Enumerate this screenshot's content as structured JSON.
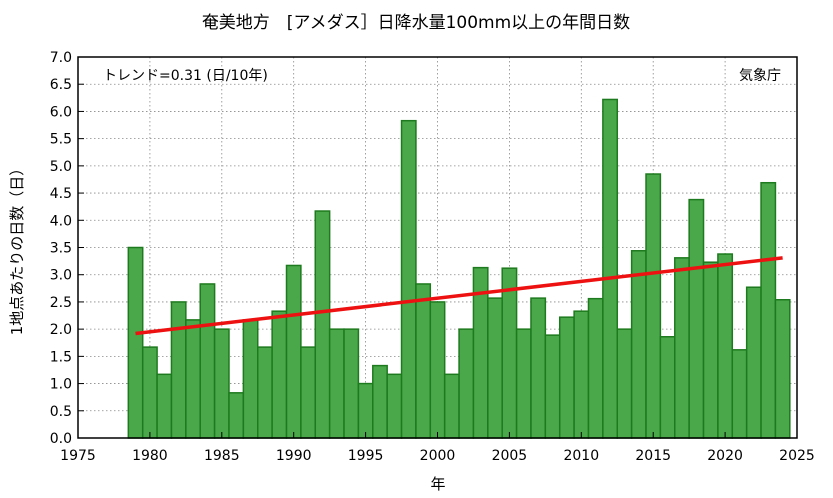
{
  "chart_data": {
    "type": "bar",
    "title": "奄美地方　[アメダス］日降水量100mm以上の年間日数",
    "xlabel": "年",
    "ylabel": "1地点あたりの日数（日）",
    "trend_label": "トレンド=0.31 (日/10年)",
    "source": "気象庁",
    "xlim": [
      1975,
      2025
    ],
    "ylim": [
      0,
      7.0
    ],
    "x_ticks": [
      "1975",
      "1980",
      "1985",
      "1990",
      "1995",
      "2000",
      "2005",
      "2010",
      "2015",
      "2020",
      "2025"
    ],
    "y_ticks": [
      "0.0",
      "0.5",
      "1.0",
      "1.5",
      "2.0",
      "2.5",
      "3.0",
      "3.5",
      "4.0",
      "4.5",
      "5.0",
      "5.5",
      "6.0",
      "6.5",
      "7.0"
    ],
    "grid": true,
    "years": [
      1979,
      1980,
      1981,
      1982,
      1983,
      1984,
      1985,
      1986,
      1987,
      1988,
      1989,
      1990,
      1991,
      1992,
      1993,
      1994,
      1995,
      1996,
      1997,
      1998,
      1999,
      2000,
      2001,
      2002,
      2003,
      2004,
      2005,
      2006,
      2007,
      2008,
      2009,
      2010,
      2011,
      2012,
      2013,
      2014,
      2015,
      2016,
      2017,
      2018,
      2019,
      2020,
      2021,
      2022,
      2023,
      2024
    ],
    "values": [
      3.5,
      1.67,
      1.17,
      2.5,
      2.17,
      2.83,
      2.0,
      0.83,
      2.17,
      1.67,
      2.33,
      3.17,
      1.67,
      4.17,
      2.0,
      2.0,
      1.0,
      1.33,
      1.17,
      5.83,
      2.83,
      2.5,
      1.17,
      2.0,
      3.13,
      2.57,
      3.12,
      2.0,
      2.57,
      1.89,
      2.22,
      2.33,
      2.56,
      6.22,
      2.0,
      3.44,
      4.85,
      1.86,
      3.31,
      4.38,
      3.23,
      3.38,
      1.62,
      2.77,
      4.69,
      2.54
    ],
    "trend": {
      "x": [
        1979,
        2024
      ],
      "y": [
        1.92,
        3.31
      ]
    },
    "colors": {
      "bar_fill": "#4aa84a",
      "bar_edge": "#1e7a1e",
      "trend": "#ee1111",
      "grid": "#888888"
    }
  }
}
